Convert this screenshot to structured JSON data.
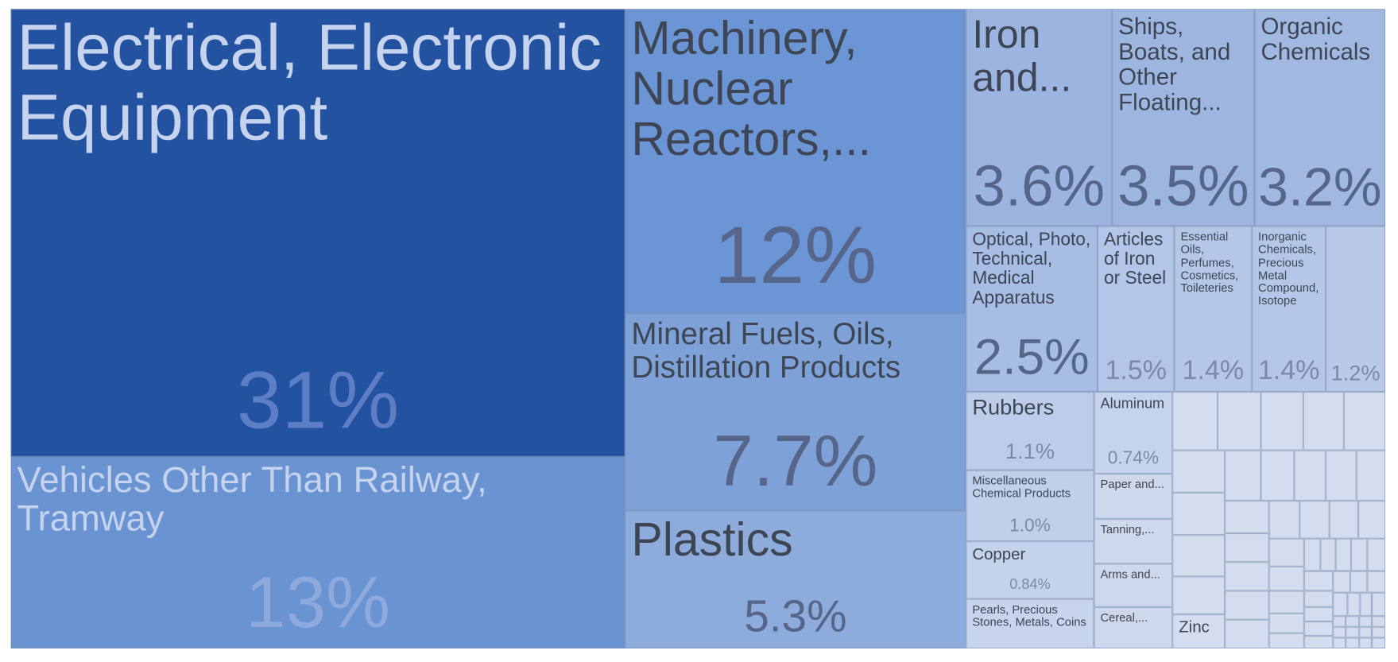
{
  "chart_data": {
    "type": "treemap",
    "categories": [
      "Electrical, Electronic Equipment",
      "Vehicles Other Than Railway, Tramway",
      "Machinery, Nuclear Reactors,...",
      "Mineral Fuels, Oils, Distillation Products",
      "Plastics",
      "Iron and...",
      "Ships, Boats, and Other Floating...",
      "Organic Chemicals",
      "Optical, Photo, Technical, Medical Apparatus",
      "Articles of Iron or Steel",
      "Essential Oils, Perfumes, Cosmetics, Toileteries",
      "Inorganic Chemicals, Precious Metal Compound, Isotope",
      null,
      "Rubbers",
      "Miscellaneous Chemical Products",
      "Copper",
      "Pearls, Precious Stones, Metals, Coins",
      "Aluminum",
      "Paper and...",
      "Tanning,...",
      "Arms and...",
      "Cereal,...",
      null,
      null,
      null,
      null,
      null,
      null,
      null,
      null,
      null,
      "Zinc",
      null,
      null,
      null,
      null,
      null,
      null,
      null,
      null,
      null,
      null,
      null,
      null,
      null,
      null,
      null,
      null,
      null,
      null,
      null,
      null,
      null,
      null,
      null,
      null,
      null,
      null,
      null,
      null,
      null,
      null,
      null,
      null,
      null,
      null,
      null,
      null,
      null,
      null,
      null,
      null,
      null,
      null,
      null,
      null,
      null,
      null,
      null,
      null
    ],
    "values": [
      31,
      13,
      12,
      7.7,
      5.3,
      3.6,
      3.5,
      3.2,
      2.5,
      1.5,
      1.4,
      1.4,
      1.2,
      1.1,
      1,
      0.84,
      0.72,
      0.74,
      0.4,
      0.4,
      0.38,
      0.37,
      0.3,
      0.29,
      0.28,
      0.27,
      0.27,
      0.25,
      0.25,
      0.24,
      0.22,
      0.2,
      0.21,
      0.19,
      0.18,
      0.17,
      0.16,
      0.16,
      0.14,
      0.14,
      0.14,
      0.14,
      0.13,
      0.13,
      0.12,
      0.12,
      0.11,
      0.1,
      0.09,
      0.08,
      0.06,
      0.06,
      0.06,
      0.06,
      0.06,
      0.07,
      0.06,
      0.05,
      0.05,
      0.05,
      0.04,
      0.04,
      0.04,
      0.04,
      0.04,
      0.03,
      0.03,
      0.04,
      0.02,
      0.02,
      0.02,
      0.02,
      0.02,
      0.02,
      0.02,
      0.02,
      0.02,
      0.02,
      0.02,
      0.02
    ],
    "value_labels": [
      "31%",
      "13%",
      "12%",
      "7.7%",
      "5.3%",
      "3.6%",
      "3.5%",
      "3.2%",
      "2.5%",
      "1.5%",
      "1.4%",
      "1.4%",
      "1.2%",
      "1.1%",
      "1.0%",
      "0.84%",
      null,
      "0.74%",
      null,
      null,
      null,
      null,
      null,
      null,
      null,
      null,
      null,
      null,
      null,
      null,
      null,
      null,
      null,
      null,
      null,
      null,
      null,
      null,
      null,
      null,
      null,
      null,
      null,
      null,
      null,
      null,
      null,
      null,
      null,
      null,
      null,
      null,
      null,
      null,
      null,
      null,
      null,
      null,
      null,
      null,
      null,
      null,
      null,
      null,
      null,
      null,
      null,
      null,
      null,
      null,
      null,
      null,
      null,
      null,
      null,
      null,
      null,
      null,
      null,
      null
    ],
    "colors": [
      "#2352a0",
      "#6a93d2",
      "#6b95d4",
      "#7ea1d8",
      "#8eacdb",
      "#9bb5e0",
      "#9db6e0",
      "#a1b9e1",
      "#a7bde3",
      "#b3c6e7",
      "#b5c7e7",
      "#b5c7e7",
      "#b8cae8",
      "#bdcde9",
      "#c0cfea",
      "#c4d2eb",
      "#c7d4ec",
      "#c6d3ec",
      "#cdd8ed",
      "#cdd8ed",
      "#cdd8ed",
      "#cdd8ed",
      "#d3ddee",
      "#d3ddee",
      "#d3ddee",
      "#d3ddee",
      "#d3ddee",
      "#d3ddee",
      "#d3ddee",
      "#d3ddee",
      "#d3ddee",
      "#d3ddee",
      "#d3ddee",
      "#d3ddee",
      "#d3ddee",
      "#d3ddee",
      "#d3ddee",
      "#d3ddee",
      "#d3ddee",
      "#d3ddee",
      "#d3ddee",
      "#d3ddee",
      "#d3ddee",
      "#d3ddee",
      "#d3ddee",
      "#d3ddee",
      "#d3ddee",
      "#d3ddee",
      "#d3ddee",
      "#d3ddee",
      "#d3ddee",
      "#d3ddee",
      "#d3ddee",
      "#d3ddee",
      "#d3ddee",
      "#d3ddee",
      "#d3ddee",
      "#d3ddee",
      "#d3ddee",
      "#d3ddee",
      "#d3ddee",
      "#d3ddee",
      "#d3ddee",
      "#d3ddee",
      "#d3ddee",
      "#d3ddee",
      "#d3ddee",
      "#d3ddee",
      "#d3ddee",
      "#d3ddee",
      "#d3ddee",
      "#d3ddee",
      "#d3ddee",
      "#d3ddee",
      "#d3ddee",
      "#d3ddee",
      "#d3ddee",
      "#d3ddee",
      "#d3ddee",
      "#d3ddee"
    ]
  }
}
